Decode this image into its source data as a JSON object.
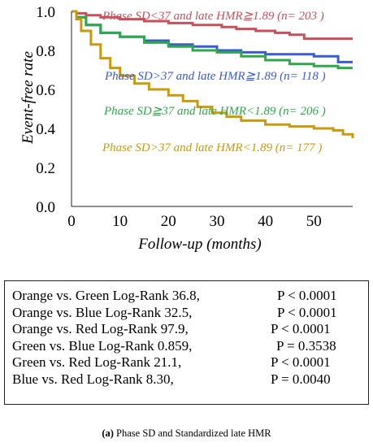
{
  "chart_data": {
    "type": "line",
    "xlabel": "Follow-up (months)",
    "ylabel": "Event-free rate",
    "xlim": [
      0,
      58
    ],
    "ylim": [
      0,
      1.0
    ],
    "xticks": [
      "0",
      "10",
      "20",
      "30",
      "40",
      "50"
    ],
    "yticks": [
      "0.0",
      "0.2",
      "0.4",
      "0.6",
      "0.8",
      "1.0"
    ],
    "series": [
      {
        "name": "Phase SD<37 and late HMR≧1.89 (n= 203 )",
        "color": "#c8505a",
        "points": [
          [
            0,
            1.0
          ],
          [
            1,
            0.99
          ],
          [
            3,
            0.98
          ],
          [
            6,
            0.97
          ],
          [
            10,
            0.96
          ],
          [
            15,
            0.95
          ],
          [
            20,
            0.94
          ],
          [
            25,
            0.93
          ],
          [
            28,
            0.93
          ],
          [
            31,
            0.92
          ],
          [
            34,
            0.91
          ],
          [
            38,
            0.9
          ],
          [
            42,
            0.89
          ],
          [
            45,
            0.88
          ],
          [
            48,
            0.86
          ],
          [
            52,
            0.86
          ],
          [
            58,
            0.86
          ]
        ]
      },
      {
        "name": "Phase SD>37 and late HMR≧1.89 (n= 118 )",
        "color": "#3a5bd6",
        "points": [
          [
            0,
            1.0
          ],
          [
            1,
            0.97
          ],
          [
            3,
            0.93
          ],
          [
            6,
            0.89
          ],
          [
            10,
            0.87
          ],
          [
            15,
            0.85
          ],
          [
            20,
            0.83
          ],
          [
            25,
            0.82
          ],
          [
            30,
            0.8
          ],
          [
            35,
            0.79
          ],
          [
            40,
            0.78
          ],
          [
            45,
            0.78
          ],
          [
            50,
            0.77
          ],
          [
            55,
            0.74
          ],
          [
            58,
            0.74
          ]
        ]
      },
      {
        "name": "Phase SD≧37 and late HMR<1.89 (n= 206 )",
        "color": "#2ea84a",
        "points": [
          [
            0,
            1.0
          ],
          [
            1,
            0.97
          ],
          [
            3,
            0.93
          ],
          [
            6,
            0.89
          ],
          [
            10,
            0.87
          ],
          [
            15,
            0.84
          ],
          [
            20,
            0.82
          ],
          [
            25,
            0.8
          ],
          [
            30,
            0.79
          ],
          [
            35,
            0.77
          ],
          [
            40,
            0.75
          ],
          [
            45,
            0.73
          ],
          [
            50,
            0.72
          ],
          [
            55,
            0.71
          ],
          [
            58,
            0.71
          ]
        ]
      },
      {
        "name": "Phase SD>37 and late HMR<1.89 (n= 177 )",
        "color": "#c89a10",
        "points": [
          [
            0,
            1.0
          ],
          [
            1,
            0.96
          ],
          [
            2,
            0.9
          ],
          [
            4,
            0.83
          ],
          [
            6,
            0.76
          ],
          [
            8,
            0.71
          ],
          [
            10,
            0.67
          ],
          [
            13,
            0.63
          ],
          [
            16,
            0.6
          ],
          [
            20,
            0.57
          ],
          [
            23,
            0.54
          ],
          [
            26,
            0.51
          ],
          [
            29,
            0.48
          ],
          [
            32,
            0.46
          ],
          [
            35,
            0.44
          ],
          [
            40,
            0.42
          ],
          [
            45,
            0.41
          ],
          [
            50,
            0.4
          ],
          [
            54,
            0.39
          ],
          [
            56,
            0.37
          ],
          [
            58,
            0.35
          ]
        ]
      }
    ]
  },
  "legend_labels": [
    "Phase SD<37 and late HMR≧1.89 (n= 203 )",
    "Phase SD>37 and late HMR≧1.89 (n= 118 )",
    "Phase SD≧37 and late HMR<1.89 (n= 206 )",
    "Phase SD>37 and late HMR<1.89 (n= 177 )"
  ],
  "stats": [
    {
      "comparison": "Orange vs. Green Log-Rank 36.8,",
      "p": "P < 0.0001"
    },
    {
      "comparison": "Orange vs. Blue Log-Rank 32.5,",
      "p": "P < 0.0001"
    },
    {
      "comparison": "Orange vs. Red Log-Rank 97.9,",
      "p": "P < 0.0001"
    },
    {
      "comparison": "Green vs. Blue Log-Rank 0.859,",
      "p": "P = 0.3538"
    },
    {
      "comparison": "Green vs. Red Log-Rank 21.1,",
      "p": "P < 0.0001"
    },
    {
      "comparison": "Blue vs. Red Log-Rank 8.30,",
      "p": "P = 0.0040"
    }
  ],
  "caption": {
    "label": "(a)",
    "text": " Phase SD and Standardized late HMR"
  }
}
